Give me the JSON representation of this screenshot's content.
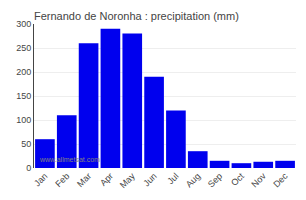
{
  "chart_data": {
    "type": "bar",
    "title": "Fernando de Noronha : precipitation (mm)",
    "categories": [
      "Jan",
      "Feb",
      "Mar",
      "Apr",
      "May",
      "Jun",
      "Jul",
      "Aug",
      "Sep",
      "Oct",
      "Nov",
      "Dec"
    ],
    "values": [
      60,
      110,
      260,
      290,
      280,
      190,
      120,
      35,
      15,
      10,
      13,
      15
    ],
    "color": "#0000ee",
    "ylim": [
      0,
      300
    ],
    "yticks": [
      0,
      50,
      100,
      150,
      200,
      250,
      300
    ],
    "grid": true,
    "annotations": [
      "www.allmetsat.com"
    ]
  }
}
